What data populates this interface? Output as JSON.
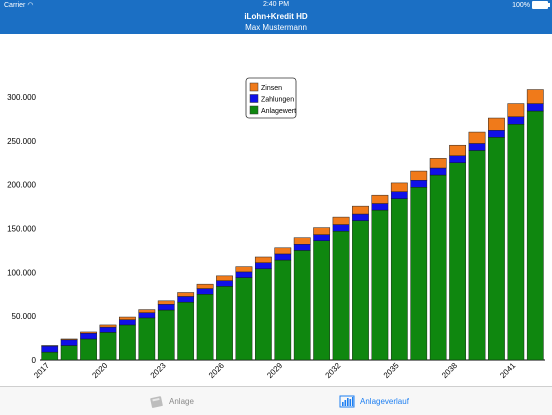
{
  "status_bar": {
    "carrier": "Carrier",
    "time": "2:40 PM",
    "battery": "100%"
  },
  "nav": {
    "title": "iLohn+Kredit HD",
    "subtitle": "Max Mustermann"
  },
  "chart_data": {
    "type": "bar",
    "stacked": true,
    "categories": [
      "2017",
      "2018",
      "2019",
      "2020",
      "2021",
      "2022",
      "2023",
      "2024",
      "2025",
      "2026",
      "2027",
      "2028",
      "2029",
      "2030",
      "2031",
      "2032",
      "2033",
      "2034",
      "2035",
      "2036",
      "2037",
      "2038",
      "2039",
      "2040",
      "2041",
      "2042"
    ],
    "x_tick_labels": [
      "2017",
      "2020",
      "2023",
      "2026",
      "2029",
      "2032",
      "2035",
      "2038",
      "2041"
    ],
    "y_tick_labels": [
      "0",
      "50.000",
      "100.000",
      "150.000",
      "200.000",
      "250.000",
      "300.000"
    ],
    "ylim": [
      0,
      300000
    ],
    "series": [
      {
        "name": "Anlagewert",
        "color": "#0f870f",
        "values": [
          9000,
          16500,
          24000,
          31500,
          40000,
          48000,
          57000,
          66000,
          75000,
          84000,
          94000,
          104000,
          114000,
          125000,
          136000,
          147000,
          159000,
          171000,
          184000,
          197000,
          211000,
          225000,
          239000,
          254000,
          269000,
          284000
        ]
      },
      {
        "name": "Zahlungen",
        "color": "#1010e8",
        "values": [
          7000,
          6500,
          6500,
          6000,
          6000,
          6000,
          6500,
          6500,
          6500,
          6500,
          6500,
          7000,
          7000,
          7000,
          7000,
          7500,
          7500,
          7500,
          8000,
          8000,
          8000,
          8000,
          8000,
          8000,
          8500,
          8500
        ]
      },
      {
        "name": "Zinsen",
        "color": "#f07a1a",
        "values": [
          500,
          1000,
          1500,
          2500,
          3000,
          3500,
          4000,
          4500,
          5000,
          5500,
          6000,
          6500,
          7000,
          7500,
          8000,
          8500,
          9000,
          9500,
          10000,
          10500,
          11000,
          12000,
          13000,
          14000,
          15000,
          16000
        ]
      }
    ],
    "legend": [
      "Zinsen",
      "Zahlungen",
      "Anlagewert"
    ],
    "legend_position": "top-center",
    "grid": false
  },
  "tabs": [
    {
      "label": "Anlage",
      "icon": "calculator-icon",
      "active": false
    },
    {
      "label": "Anlageverlauf",
      "icon": "bar-chart-icon",
      "active": true
    }
  ]
}
